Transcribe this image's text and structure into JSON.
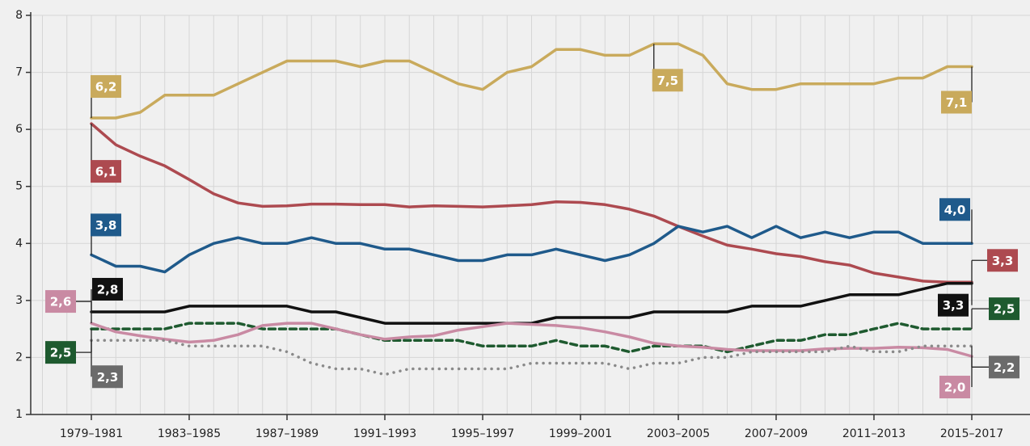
{
  "chart_data": {
    "type": "line",
    "categories": [
      "1979–1981",
      null,
      null,
      null,
      "1983–1985",
      null,
      null,
      null,
      "1987–1989",
      null,
      null,
      null,
      "1991–1993",
      null,
      null,
      null,
      "1995–1997",
      null,
      null,
      null,
      "1999–2001",
      null,
      null,
      null,
      "2003–2005",
      null,
      null,
      null,
      "2007–2009",
      null,
      null,
      null,
      "2011–2013",
      null,
      null,
      null,
      "2015–2017"
    ],
    "ylim": [
      1,
      8
    ],
    "yticks": [
      1,
      2,
      3,
      4,
      5,
      6,
      7,
      8
    ],
    "grid": true,
    "series": [
      {
        "color": "#c9aa5c",
        "style": "solid",
        "values": [
          6.2,
          6.2,
          6.3,
          6.6,
          6.6,
          6.6,
          6.8,
          7.0,
          7.2,
          7.2,
          7.2,
          7.1,
          7.2,
          7.2,
          7.0,
          6.8,
          6.7,
          7.0,
          7.1,
          7.4,
          7.4,
          7.3,
          7.3,
          7.5,
          7.5,
          7.3,
          6.8,
          6.7,
          6.7,
          6.8,
          6.8,
          6.8,
          6.8,
          6.9,
          6.9,
          7.1,
          7.1
        ],
        "value_labels": [
          "6,2",
          null,
          null,
          null,
          null,
          null,
          null,
          null,
          null,
          null,
          null,
          null,
          null,
          null,
          null,
          null,
          null,
          null,
          null,
          null,
          null,
          null,
          null,
          "7,5",
          null,
          null,
          null,
          null,
          null,
          null,
          null,
          null,
          null,
          null,
          null,
          null,
          "7,1"
        ]
      },
      {
        "color": "#ad4a50",
        "style": "solid",
        "values": [
          6.1,
          5.73,
          5.53,
          5.36,
          5.12,
          4.87,
          4.71,
          4.65,
          4.66,
          4.69,
          4.69,
          4.68,
          4.68,
          4.64,
          4.66,
          4.65,
          4.64,
          4.66,
          4.68,
          4.73,
          4.72,
          4.68,
          4.6,
          4.48,
          4.3,
          4.13,
          3.97,
          3.9,
          3.82,
          3.77,
          3.68,
          3.62,
          3.48,
          3.41,
          3.34,
          3.32,
          3.32
        ],
        "value_labels": [
          "6,1",
          null,
          null,
          null,
          null,
          null,
          null,
          null,
          null,
          null,
          null,
          null,
          null,
          null,
          null,
          null,
          null,
          null,
          null,
          null,
          null,
          null,
          null,
          null,
          null,
          null,
          null,
          null,
          null,
          null,
          null,
          null,
          null,
          null,
          null,
          null,
          "3,3"
        ]
      },
      {
        "color": "#1f5a8b",
        "style": "solid",
        "values": [
          3.8,
          3.6,
          3.6,
          3.5,
          3.8,
          4.0,
          4.1,
          4.0,
          4.0,
          4.1,
          4.0,
          4.0,
          3.9,
          3.9,
          3.8,
          3.7,
          3.7,
          3.8,
          3.8,
          3.9,
          3.8,
          3.7,
          3.8,
          4.0,
          4.3,
          4.2,
          4.3,
          4.1,
          4.3,
          4.1,
          4.2,
          4.1,
          4.2,
          4.2,
          4.0,
          4.0,
          4.0
        ],
        "value_labels": [
          "3,8",
          null,
          null,
          null,
          null,
          null,
          null,
          null,
          null,
          null,
          null,
          null,
          null,
          null,
          null,
          null,
          null,
          null,
          null,
          null,
          null,
          null,
          null,
          null,
          null,
          null,
          null,
          null,
          null,
          null,
          null,
          null,
          null,
          null,
          null,
          null,
          "4,0"
        ]
      },
      {
        "color": "#111111",
        "style": "solid",
        "values": [
          2.8,
          2.8,
          2.8,
          2.8,
          2.9,
          2.9,
          2.9,
          2.9,
          2.9,
          2.8,
          2.8,
          2.7,
          2.6,
          2.6,
          2.6,
          2.6,
          2.6,
          2.6,
          2.6,
          2.7,
          2.7,
          2.7,
          2.7,
          2.8,
          2.8,
          2.8,
          2.8,
          2.9,
          2.9,
          2.9,
          3.0,
          3.1,
          3.1,
          3.1,
          3.2,
          3.3,
          3.3
        ],
        "value_labels": [
          "2,8",
          null,
          null,
          null,
          null,
          null,
          null,
          null,
          null,
          null,
          null,
          null,
          null,
          null,
          null,
          null,
          null,
          null,
          null,
          null,
          null,
          null,
          null,
          null,
          null,
          null,
          null,
          null,
          null,
          null,
          null,
          null,
          null,
          null,
          null,
          null,
          "3,3"
        ]
      },
      {
        "color": "#1e5a2f",
        "style": "dashed",
        "values": [
          2.5,
          2.5,
          2.5,
          2.5,
          2.6,
          2.6,
          2.6,
          2.5,
          2.5,
          2.5,
          2.5,
          2.4,
          2.3,
          2.3,
          2.3,
          2.3,
          2.2,
          2.2,
          2.2,
          2.3,
          2.2,
          2.2,
          2.1,
          2.2,
          2.2,
          2.2,
          2.1,
          2.2,
          2.3,
          2.3,
          2.4,
          2.4,
          2.5,
          2.6,
          2.5,
          2.5,
          2.5
        ],
        "value_labels": [
          "2,5",
          null,
          null,
          null,
          null,
          null,
          null,
          null,
          null,
          null,
          null,
          null,
          null,
          null,
          null,
          null,
          null,
          null,
          null,
          null,
          null,
          null,
          null,
          null,
          null,
          null,
          null,
          null,
          null,
          null,
          null,
          null,
          null,
          null,
          null,
          null,
          "2,5"
        ]
      },
      {
        "color": "#c98aa3",
        "style": "solid",
        "values": [
          2.6,
          2.45,
          2.38,
          2.32,
          2.27,
          2.3,
          2.4,
          2.56,
          2.6,
          2.6,
          2.5,
          2.4,
          2.32,
          2.36,
          2.38,
          2.48,
          2.54,
          2.6,
          2.58,
          2.56,
          2.52,
          2.45,
          2.36,
          2.25,
          2.2,
          2.18,
          2.14,
          2.12,
          2.12,
          2.12,
          2.15,
          2.16,
          2.16,
          2.18,
          2.17,
          2.14,
          2.02
        ],
        "value_labels": [
          "2,6",
          null,
          null,
          null,
          null,
          null,
          null,
          null,
          null,
          null,
          null,
          null,
          null,
          null,
          null,
          null,
          null,
          null,
          null,
          null,
          null,
          null,
          null,
          null,
          null,
          null,
          null,
          null,
          null,
          null,
          null,
          null,
          null,
          null,
          null,
          null,
          "2,0"
        ]
      },
      {
        "color": "#8a8a8a",
        "style": "dotted",
        "values": [
          2.3,
          2.3,
          2.3,
          2.3,
          2.2,
          2.2,
          2.2,
          2.2,
          2.1,
          1.9,
          1.8,
          1.8,
          1.7,
          1.8,
          1.8,
          1.8,
          1.8,
          1.8,
          1.9,
          1.9,
          1.9,
          1.9,
          1.8,
          1.9,
          1.9,
          2.0,
          2.0,
          2.1,
          2.1,
          2.1,
          2.1,
          2.2,
          2.1,
          2.1,
          2.2,
          2.2,
          2.2
        ],
        "value_labels": [
          "2,3",
          null,
          null,
          null,
          null,
          null,
          null,
          null,
          null,
          null,
          null,
          null,
          null,
          null,
          null,
          null,
          null,
          null,
          null,
          null,
          null,
          null,
          null,
          null,
          null,
          null,
          null,
          null,
          null,
          null,
          null,
          null,
          null,
          null,
          null,
          null,
          "2,2"
        ]
      }
    ]
  }
}
